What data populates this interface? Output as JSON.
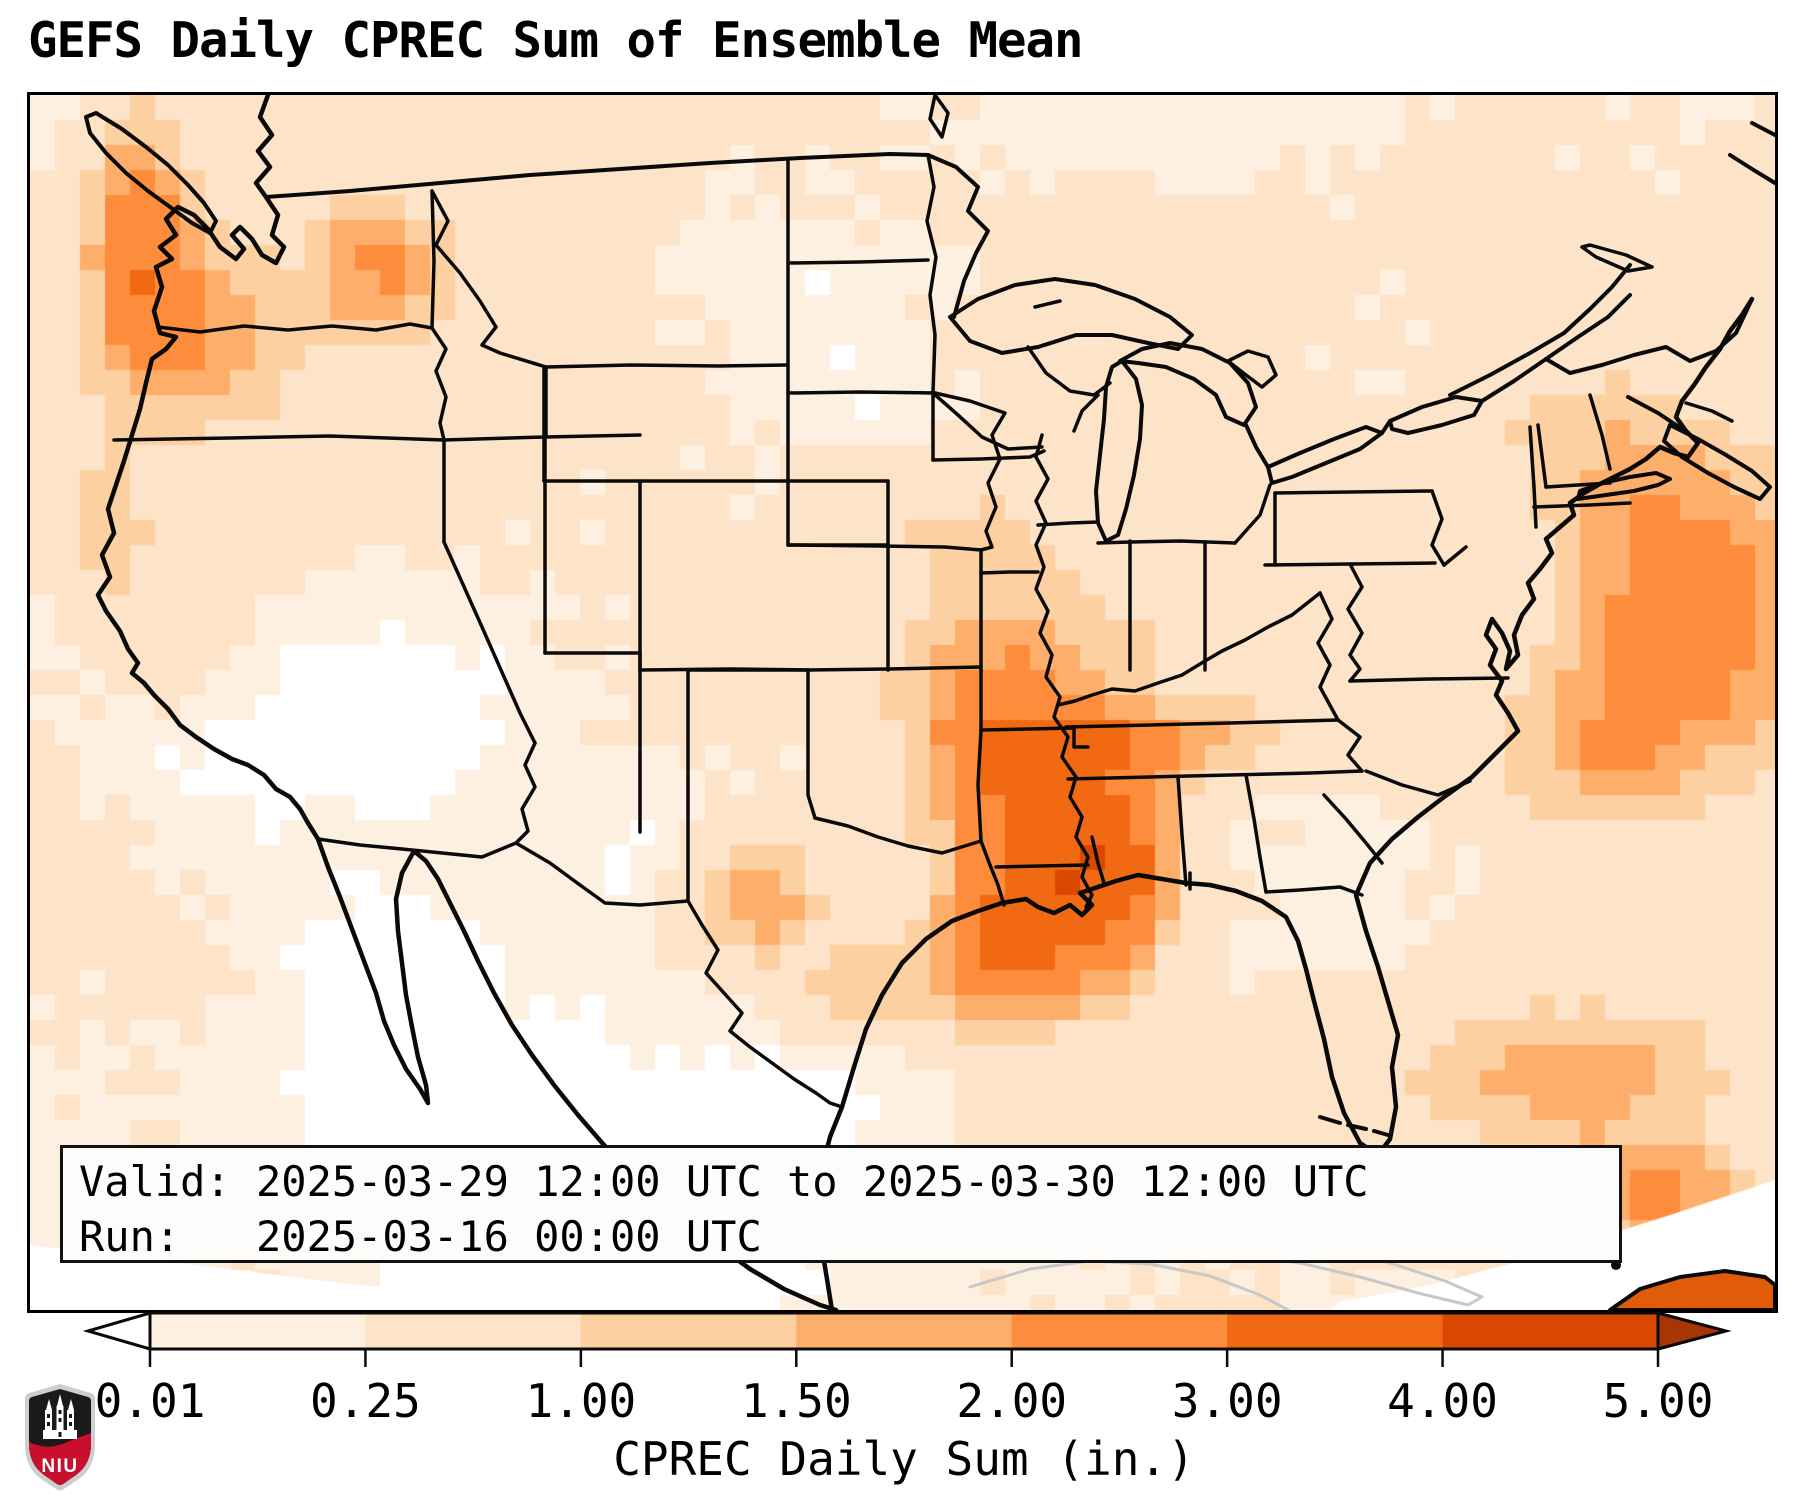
{
  "title": "GEFS Daily CPREC Sum of Ensemble Mean",
  "info_box": {
    "line1": "Valid: 2025-03-29 12:00 UTC to 2025-03-30 12:00 UTC",
    "line2": "Run:   2025-03-16 00:00 UTC"
  },
  "colorbar": {
    "label": "CPREC Daily Sum (in.)",
    "ticks": [
      "0.01",
      "0.25",
      "1.00",
      "1.50",
      "2.00",
      "3.00",
      "4.00",
      "5.00"
    ]
  },
  "logo": {
    "text": "NIU",
    "red": "#c8102e",
    "field_black": "#1a1a1a",
    "silver": "#cdced0"
  },
  "chart_data": {
    "type": "heatmap",
    "title": "GEFS Daily CPREC Sum of Ensemble Mean",
    "units": "inches",
    "valid_period": "2025-03-29 12:00 UTC to 2025-03-30 12:00 UTC",
    "model_run": "2025-03-16 00:00 UTC",
    "legend_position": "bottom",
    "levels": [
      0.01,
      0.25,
      1.0,
      1.5,
      2.0,
      3.0,
      4.0,
      5.0
    ],
    "palette": [
      "#fdf0e1",
      "#fde3c7",
      "#fdd0a2",
      "#fdae6b",
      "#fd8d3c",
      "#f16913",
      "#d94801"
    ],
    "under_color": "#ffffff",
    "over_color": "#a63603",
    "line_color": "#0a0a0a",
    "gray_line_color": "#c8c8c8",
    "maxima": [
      {
        "region": "Pacific Northwest coast",
        "approx_value_in": 2.5
      },
      {
        "region": "Northern Idaho panhandle",
        "approx_value_in": 1.8
      },
      {
        "region": "Northern California coast",
        "approx_value_in": 1.2
      },
      {
        "region": "Iowa / northern Missouri",
        "approx_value_in": 1.4
      },
      {
        "region": "Lower Mississippi Valley (AR/LA/MS)",
        "approx_value_in": 3.0
      },
      {
        "region": "Tennessee band",
        "approx_value_in": 1.8
      },
      {
        "region": "Central Texas",
        "approx_value_in": 1.9
      },
      {
        "region": "Western Atlantic offshore",
        "approx_value_in": 3.5
      },
      {
        "region": "Gulf Stream off Southeast coast",
        "approx_value_in": 1.8
      },
      {
        "region": "Cuba / far southwest Atlantic corner",
        "approx_value_in": 4.5
      }
    ],
    "hotspots": [
      [
        0.063,
        0.12,
        0.022,
        0.075,
        2.3
      ],
      [
        0.1,
        0.2,
        0.03,
        0.05,
        1.2
      ],
      [
        0.2,
        0.14,
        0.028,
        0.04,
        1.6
      ],
      [
        0.14,
        0.2,
        0.08,
        0.1,
        0.45
      ],
      [
        0.045,
        0.36,
        0.022,
        0.05,
        1.0
      ],
      [
        0.09,
        0.44,
        0.025,
        0.04,
        0.5
      ],
      [
        0.54,
        0.36,
        0.045,
        0.035,
        0.9
      ],
      [
        0.545,
        0.465,
        0.04,
        0.04,
        1.3
      ],
      [
        0.56,
        0.55,
        0.04,
        0.05,
        1.9
      ],
      [
        0.58,
        0.64,
        0.035,
        0.06,
        2.5
      ],
      [
        0.55,
        0.71,
        0.03,
        0.04,
        2.0
      ],
      [
        0.625,
        0.63,
        0.025,
        0.06,
        2.2
      ],
      [
        0.64,
        0.525,
        0.06,
        0.02,
        1.6
      ],
      [
        0.415,
        0.655,
        0.03,
        0.035,
        1.7
      ],
      [
        0.47,
        0.73,
        0.025,
        0.025,
        1.0
      ],
      [
        0.95,
        0.42,
        0.05,
        0.08,
        2.4
      ],
      [
        0.9,
        0.54,
        0.045,
        0.045,
        1.3
      ],
      [
        0.89,
        0.28,
        0.045,
        0.05,
        0.8
      ],
      [
        0.875,
        0.8,
        0.07,
        0.045,
        1.5
      ],
      [
        0.93,
        0.9,
        0.045,
        0.03,
        1.6
      ],
      [
        0.975,
        0.97,
        0.03,
        0.025,
        3.0
      ],
      [
        0.63,
        0.83,
        0.05,
        0.04,
        0.7
      ],
      [
        0.64,
        0.44,
        0.05,
        0.04,
        0.6
      ]
    ],
    "dry_zones": [
      [
        0.21,
        0.5,
        0.055,
        0.07,
        0.5
      ],
      [
        0.12,
        0.54,
        0.035,
        0.05,
        0.3
      ],
      [
        0.27,
        0.84,
        0.09,
        0.09,
        0.55
      ],
      [
        0.35,
        0.64,
        0.04,
        0.05,
        0.4
      ],
      [
        0.44,
        0.15,
        0.06,
        0.05,
        0.3
      ],
      [
        0.47,
        0.25,
        0.045,
        0.04,
        0.25
      ],
      [
        0.44,
        0.83,
        0.045,
        0.05,
        0.35
      ],
      [
        0.2,
        0.73,
        0.035,
        0.06,
        0.35
      ],
      [
        0.62,
        0.03,
        0.08,
        0.04,
        0.25
      ],
      [
        0.36,
        0.95,
        0.08,
        0.06,
        0.4
      ]
    ]
  }
}
